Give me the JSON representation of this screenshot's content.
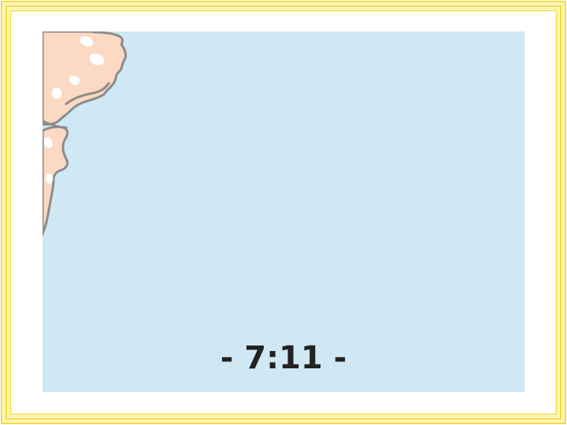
{
  "slide": {
    "caption": "- 7:11 -"
  },
  "colors": {
    "frame_gold": "#f2dc3c",
    "frame_light": "#fff2a8",
    "sea": "#cfe8f3",
    "land": "#fcd9c3",
    "land_highlight": "#ffffff",
    "coast": "#8c8c8c",
    "caption_text": "#222222"
  }
}
